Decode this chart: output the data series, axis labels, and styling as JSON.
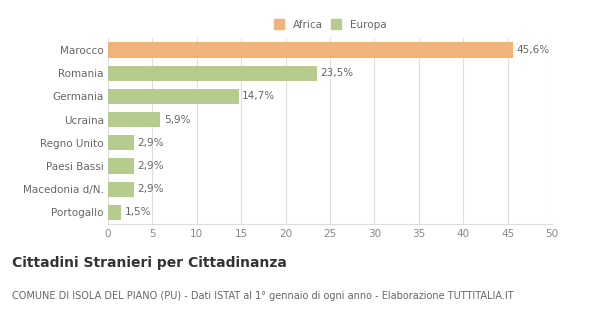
{
  "categories": [
    "Marocco",
    "Romania",
    "Germania",
    "Ucraina",
    "Regno Unito",
    "Paesi Bassi",
    "Macedonia d/N.",
    "Portogallo"
  ],
  "values": [
    45.6,
    23.5,
    14.7,
    5.9,
    2.9,
    2.9,
    2.9,
    1.5
  ],
  "labels": [
    "45,6%",
    "23,5%",
    "14,7%",
    "5,9%",
    "2,9%",
    "2,9%",
    "2,9%",
    "1,5%"
  ],
  "colors": [
    "#f0b47a",
    "#b5cc8e",
    "#b5cc8e",
    "#b5cc8e",
    "#b5cc8e",
    "#b5cc8e",
    "#b5cc8e",
    "#b5cc8e"
  ],
  "legend_labels": [
    "Africa",
    "Europa"
  ],
  "legend_colors": [
    "#f0b47a",
    "#b5cc8e"
  ],
  "xlim": [
    0,
    50
  ],
  "xticks": [
    0,
    5,
    10,
    15,
    20,
    25,
    30,
    35,
    40,
    45,
    50
  ],
  "title": "Cittadini Stranieri per Cittadinanza",
  "subtitle": "COMUNE DI ISOLA DEL PIANO (PU) - Dati ISTAT al 1° gennaio di ogni anno - Elaborazione TUTTITALIA.IT",
  "bg_color": "#ffffff",
  "grid_color": "#dddddd",
  "bar_height": 0.65,
  "label_fontsize": 7.5,
  "tick_fontsize": 7.5,
  "title_fontsize": 10,
  "subtitle_fontsize": 7
}
